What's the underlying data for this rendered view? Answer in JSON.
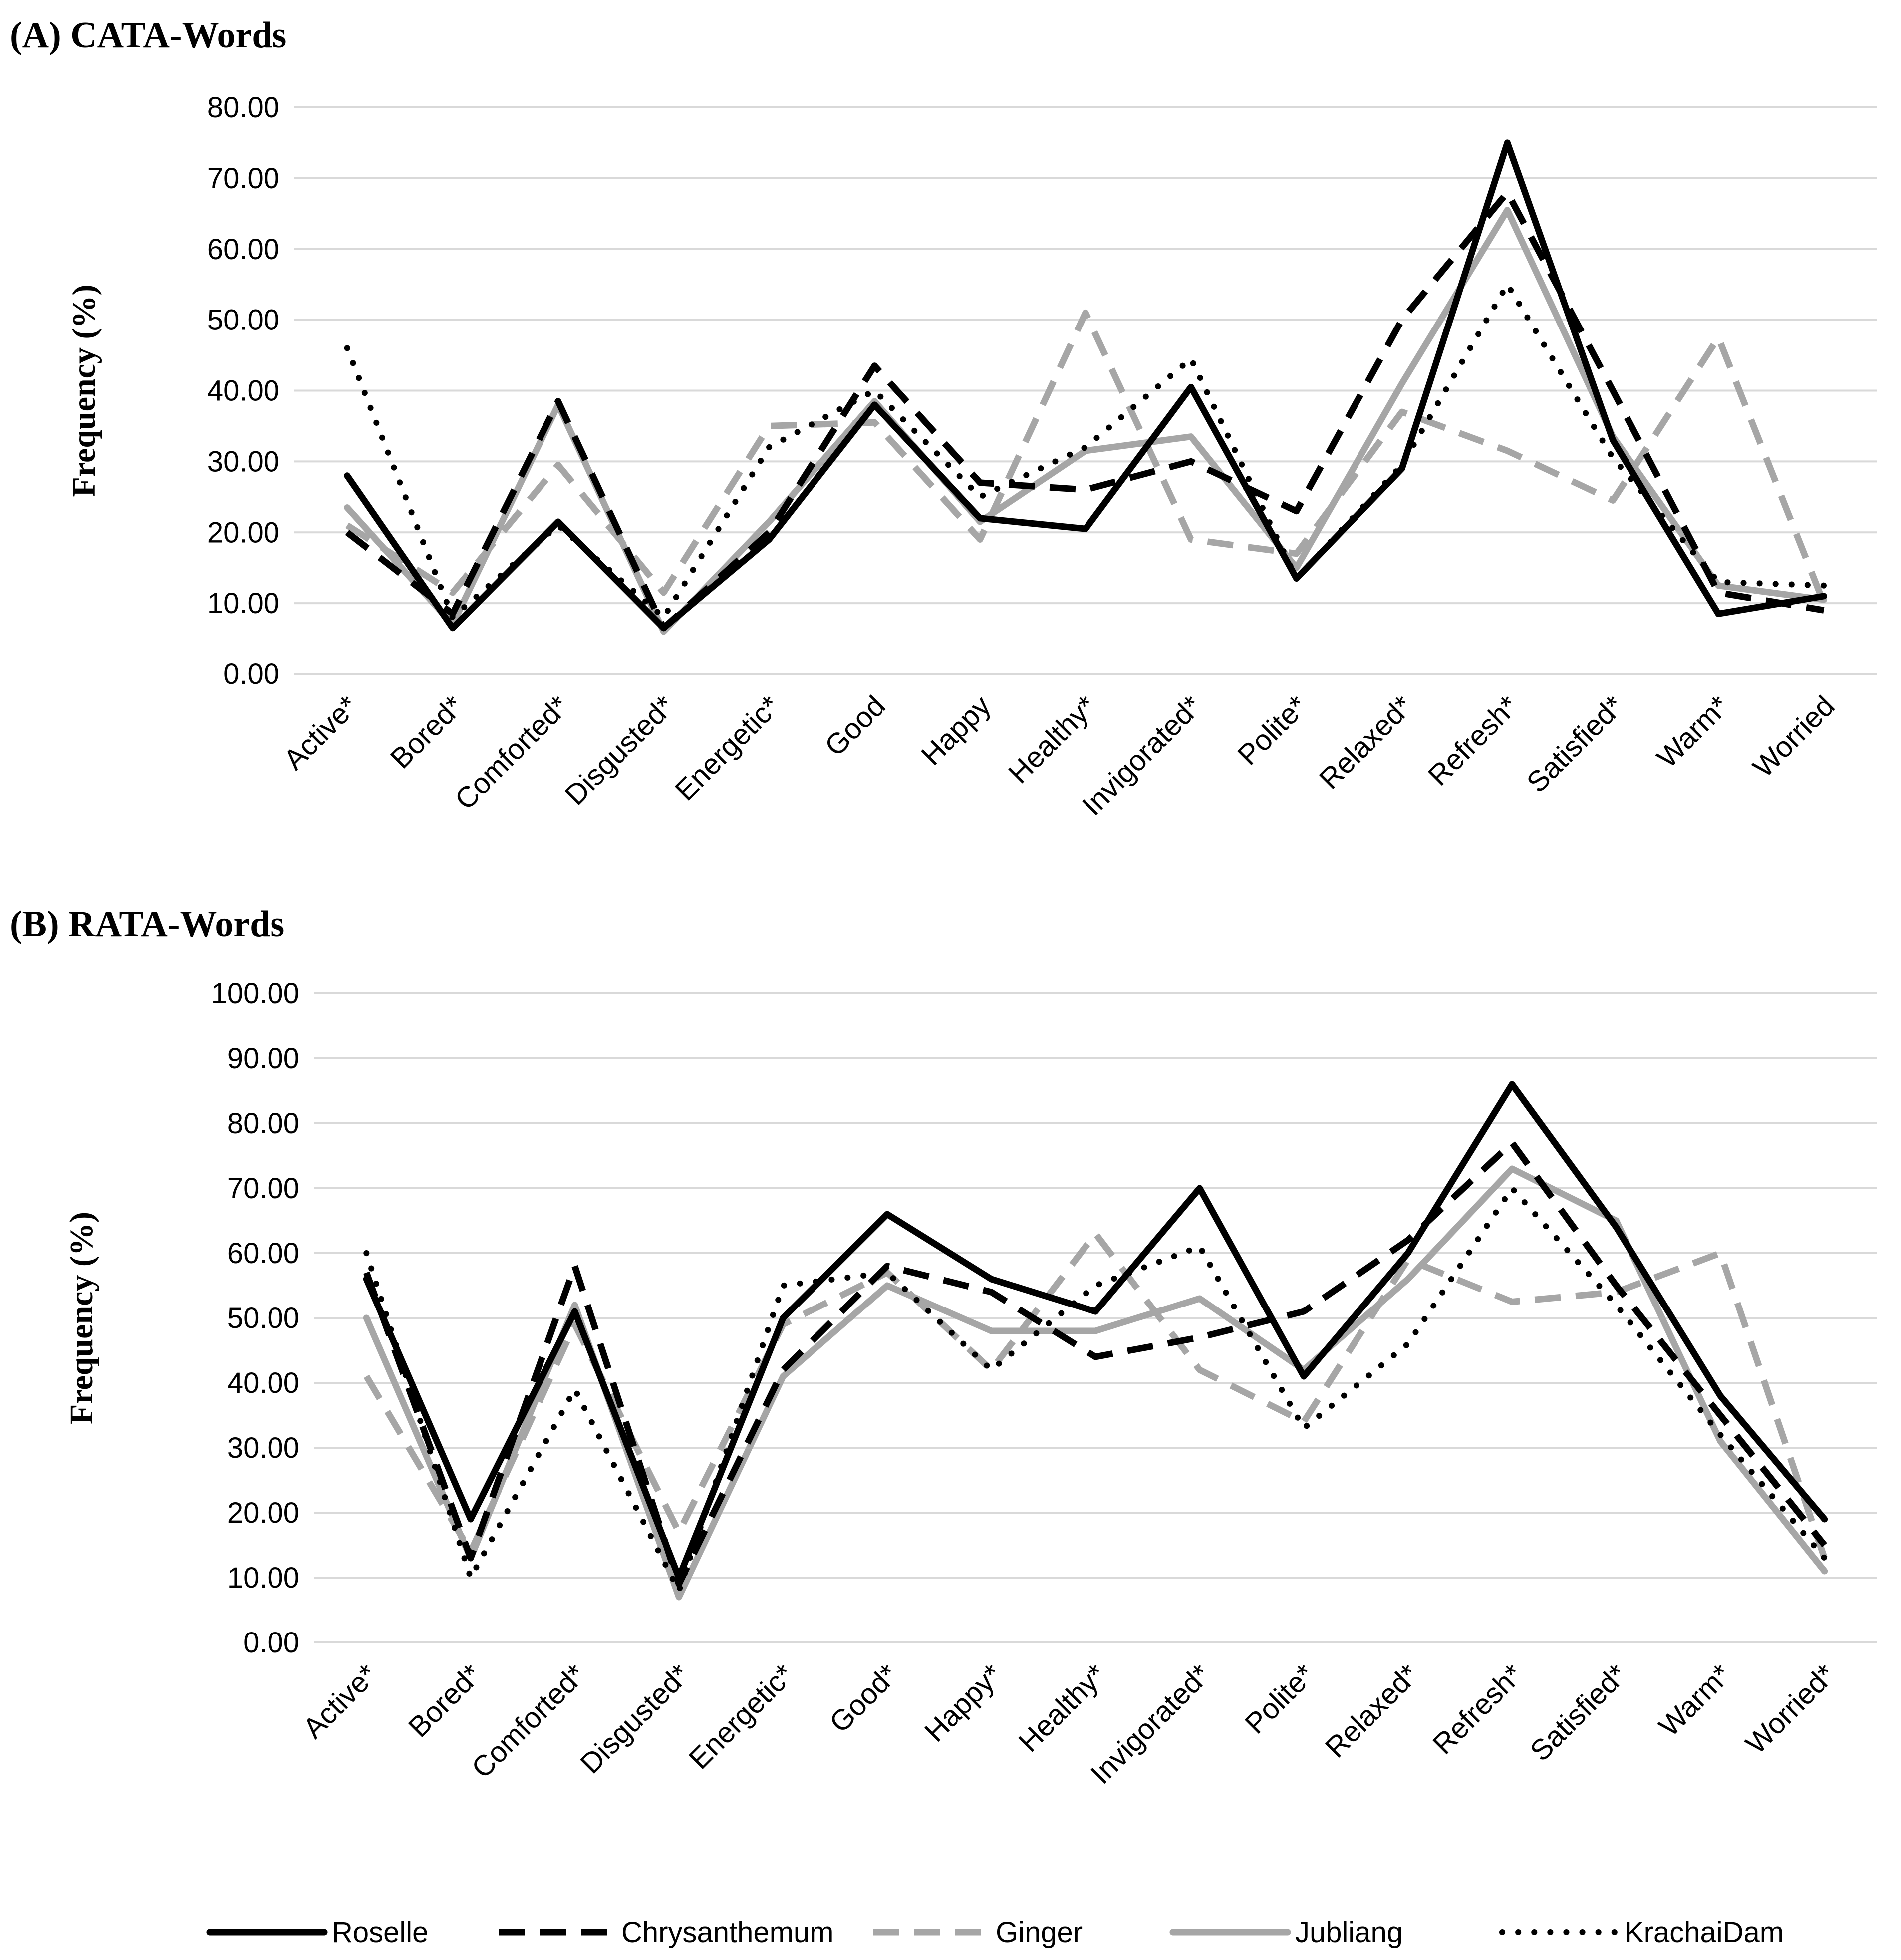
{
  "chart_data": [
    {
      "type": "line",
      "title": "(A) CATA-Words",
      "ylabel": "Frequency (%)",
      "xlabel": "",
      "ylim": [
        0,
        80
      ],
      "yticks": [
        "0.00",
        "10.00",
        "20.00",
        "30.00",
        "40.00",
        "50.00",
        "60.00",
        "70.00",
        "80.00"
      ],
      "grid": true,
      "categories": [
        "Active*",
        "Bored*",
        "Comforted*",
        "Disgusted*",
        "Energetic*",
        "Good",
        "Happy",
        "Healthy*",
        "Invigorated*",
        "Polite*",
        "Relaxed*",
        "Refresh*",
        "Satisfied*",
        "Warm*",
        "Worried"
      ],
      "series": [
        {
          "name": "Roselle",
          "values": [
            28,
            6.5,
            21.5,
            6.5,
            19,
            38,
            22,
            20.5,
            40.5,
            13.5,
            29,
            75,
            33,
            8.5,
            11
          ]
        },
        {
          "name": "Chrysanthemum",
          "values": [
            20,
            8.5,
            38.5,
            6.5,
            20,
            43.5,
            27,
            26,
            30,
            23,
            50,
            68,
            40,
            11.5,
            9
          ]
        },
        {
          "name": "Ginger",
          "values": [
            21,
            11.5,
            29.5,
            11.5,
            35,
            35.5,
            19,
            51,
            19,
            17,
            37,
            31.5,
            24.5,
            47.5,
            10
          ]
        },
        {
          "name": "Jubliang",
          "values": [
            23.5,
            7,
            38,
            6,
            21.5,
            38.5,
            21.5,
            31.5,
            33.5,
            15,
            41,
            65.5,
            33.5,
            12.5,
            10.5
          ]
        },
        {
          "name": "KrachaiDam",
          "values": [
            46,
            8,
            21,
            8,
            32,
            40,
            25,
            32,
            44.5,
            13.5,
            29.5,
            55,
            30.5,
            13,
            12.5
          ]
        }
      ]
    },
    {
      "type": "line",
      "title": "(B) RATA-Words",
      "ylabel": "Frequency (%)",
      "xlabel": "",
      "ylim": [
        0,
        100
      ],
      "yticks": [
        "0.00",
        "10.00",
        "20.00",
        "30.00",
        "40.00",
        "50.00",
        "60.00",
        "70.00",
        "80.00",
        "90.00",
        "100.00"
      ],
      "grid": true,
      "categories": [
        "Active*",
        "Bored*",
        "Comforted*",
        "Disgusted*",
        "Energetic*",
        "Good*",
        "Happy*",
        "Healthy*",
        "Invigorated*",
        "Polite*",
        "Relaxed*",
        "Refresh*",
        "Satisfied*",
        "Warm*",
        "Worried*"
      ],
      "series": [
        {
          "name": "Roselle",
          "values": [
            56,
            19,
            51,
            10,
            50,
            66,
            56,
            51,
            70,
            41,
            60,
            86,
            64,
            38,
            19
          ]
        },
        {
          "name": "Chrysanthemum",
          "values": [
            57,
            13,
            58,
            9,
            42,
            58,
            54,
            44,
            47,
            51,
            62,
            77,
            55,
            35,
            15
          ]
        },
        {
          "name": "Ginger",
          "values": [
            41,
            14,
            49,
            17,
            49,
            57,
            42,
            63,
            42,
            34,
            59,
            52.5,
            54,
            60,
            13
          ]
        },
        {
          "name": "Jubliang",
          "values": [
            50,
            13,
            52,
            7,
            41,
            55,
            48,
            48,
            53,
            42,
            56,
            73,
            65,
            31,
            11
          ]
        },
        {
          "name": "KrachaiDam",
          "values": [
            60,
            10,
            39,
            8,
            55,
            57,
            42,
            55,
            61,
            33,
            46,
            70,
            52,
            32,
            13
          ]
        }
      ]
    }
  ],
  "legend": {
    "position": "bottom",
    "entries": [
      {
        "name": "Roselle",
        "color": "#000000",
        "dash": "solid"
      },
      {
        "name": "Chrysanthemum",
        "color": "#000000",
        "dash": "dashed"
      },
      {
        "name": "Ginger",
        "color": "#a6a6a6",
        "dash": "dashed"
      },
      {
        "name": "Jubliang",
        "color": "#a6a6a6",
        "dash": "solid"
      },
      {
        "name": "KrachaiDam",
        "color": "#000000",
        "dash": "dotted"
      }
    ]
  }
}
